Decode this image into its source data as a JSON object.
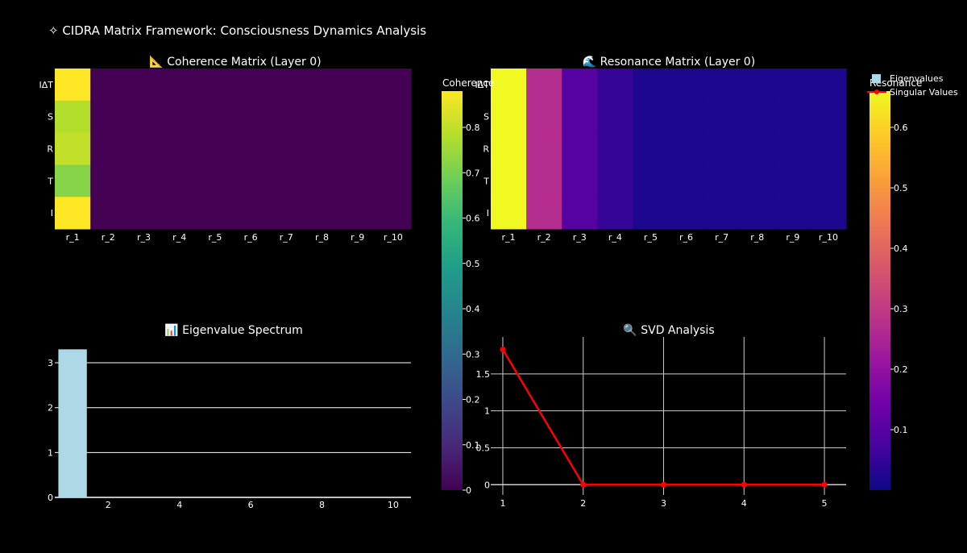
{
  "figure": {
    "title": "✧ CIDRA Matrix Framework: Consciousness Dynamics Analysis",
    "background": "#000000"
  },
  "chart_data": [
    {
      "type": "heatmap",
      "id": "coherence",
      "title": "📐 Coherence Matrix (Layer 0)",
      "x": [
        "r_1",
        "r_2",
        "r_3",
        "r_4",
        "r_5",
        "r_6",
        "r_7",
        "r_8",
        "r_9",
        "r_10"
      ],
      "y": [
        "IΔT",
        "S",
        "R",
        "T",
        "I"
      ],
      "z": [
        [
          0.88,
          0.0,
          0.0,
          0.0,
          0.0,
          0.0,
          0.0,
          0.0,
          0.0,
          0.0
        ],
        [
          0.78,
          0.0,
          0.0,
          0.0,
          0.0,
          0.0,
          0.0,
          0.0,
          0.0,
          0.0
        ],
        [
          0.8,
          0.0,
          0.0,
          0.0,
          0.0,
          0.0,
          0.0,
          0.0,
          0.0,
          0.0
        ],
        [
          0.72,
          0.0,
          0.0,
          0.0,
          0.0,
          0.0,
          0.0,
          0.0,
          0.0,
          0.0
        ],
        [
          0.88,
          0.0,
          0.0,
          0.0,
          0.0,
          0.0,
          0.0,
          0.0,
          0.0,
          0.0
        ]
      ],
      "colorscale": "viridis",
      "colorbar": {
        "title": "Coherence",
        "range": [
          0,
          0.88
        ],
        "ticks": [
          0,
          0.1,
          0.2,
          0.3,
          0.4,
          0.5,
          0.6,
          0.7,
          0.8
        ]
      }
    },
    {
      "type": "heatmap",
      "id": "resonance",
      "title": "🌊 Resonance Matrix (Layer 0)",
      "x": [
        "r_1",
        "r_2",
        "r_3",
        "r_4",
        "r_5",
        "r_6",
        "r_7",
        "r_8",
        "r_9",
        "r_10"
      ],
      "y": [
        "IΔT",
        "S",
        "R",
        "T",
        "I"
      ],
      "z": [
        [
          0.66,
          0.27,
          0.1,
          0.05,
          0.02,
          0.02,
          0.02,
          0.02,
          0.02,
          0.02
        ],
        [
          0.66,
          0.27,
          0.1,
          0.05,
          0.02,
          0.02,
          0.02,
          0.02,
          0.02,
          0.02
        ],
        [
          0.66,
          0.27,
          0.1,
          0.05,
          0.02,
          0.02,
          0.02,
          0.02,
          0.02,
          0.02
        ],
        [
          0.66,
          0.27,
          0.1,
          0.05,
          0.02,
          0.02,
          0.02,
          0.02,
          0.02,
          0.02
        ],
        [
          0.66,
          0.27,
          0.1,
          0.05,
          0.02,
          0.02,
          0.02,
          0.02,
          0.02,
          0.02
        ]
      ],
      "colorscale": "plasma",
      "colorbar": {
        "title": "Resonance",
        "range": [
          0,
          0.66
        ],
        "ticks": [
          0.1,
          0.2,
          0.3,
          0.4,
          0.5,
          0.6
        ]
      }
    },
    {
      "type": "bar",
      "id": "eigen",
      "title": "📊 Eigenvalue Spectrum",
      "x": [
        1,
        2,
        3,
        4,
        5,
        6,
        7,
        8,
        9,
        10
      ],
      "values": [
        3.3,
        0,
        0,
        0,
        0,
        0,
        0,
        0,
        0,
        0
      ],
      "xlim": [
        0.5,
        10.5
      ],
      "ylim": [
        0,
        3.45
      ],
      "xticks": [
        2,
        4,
        6,
        8,
        10
      ],
      "yticks": [
        0,
        1,
        2,
        3
      ],
      "color": "#add8e6",
      "legend_name": "Eigenvalues"
    },
    {
      "type": "line",
      "id": "svd",
      "title": "🔍 SVD Analysis",
      "x": [
        1,
        2,
        3,
        4,
        5
      ],
      "values": [
        1.83,
        0,
        0,
        0,
        0
      ],
      "xlim": [
        0.85,
        5.27
      ],
      "ylim": [
        -0.03,
        2.0
      ],
      "xticks": [
        1,
        2,
        3,
        4,
        5
      ],
      "yticks": [
        0,
        0.5,
        1,
        1.5
      ],
      "yticklabels": [
        "0",
        "0.5",
        "1",
        "1.5"
      ],
      "color": "#ff0000",
      "legend_name": "Singular Values"
    }
  ],
  "legend": {
    "items": [
      {
        "label": "Eigenvalues",
        "color": "#add8e6",
        "symbol": "square"
      },
      {
        "label": "Singular Values",
        "color": "#ff0000",
        "symbol": "line"
      }
    ]
  }
}
